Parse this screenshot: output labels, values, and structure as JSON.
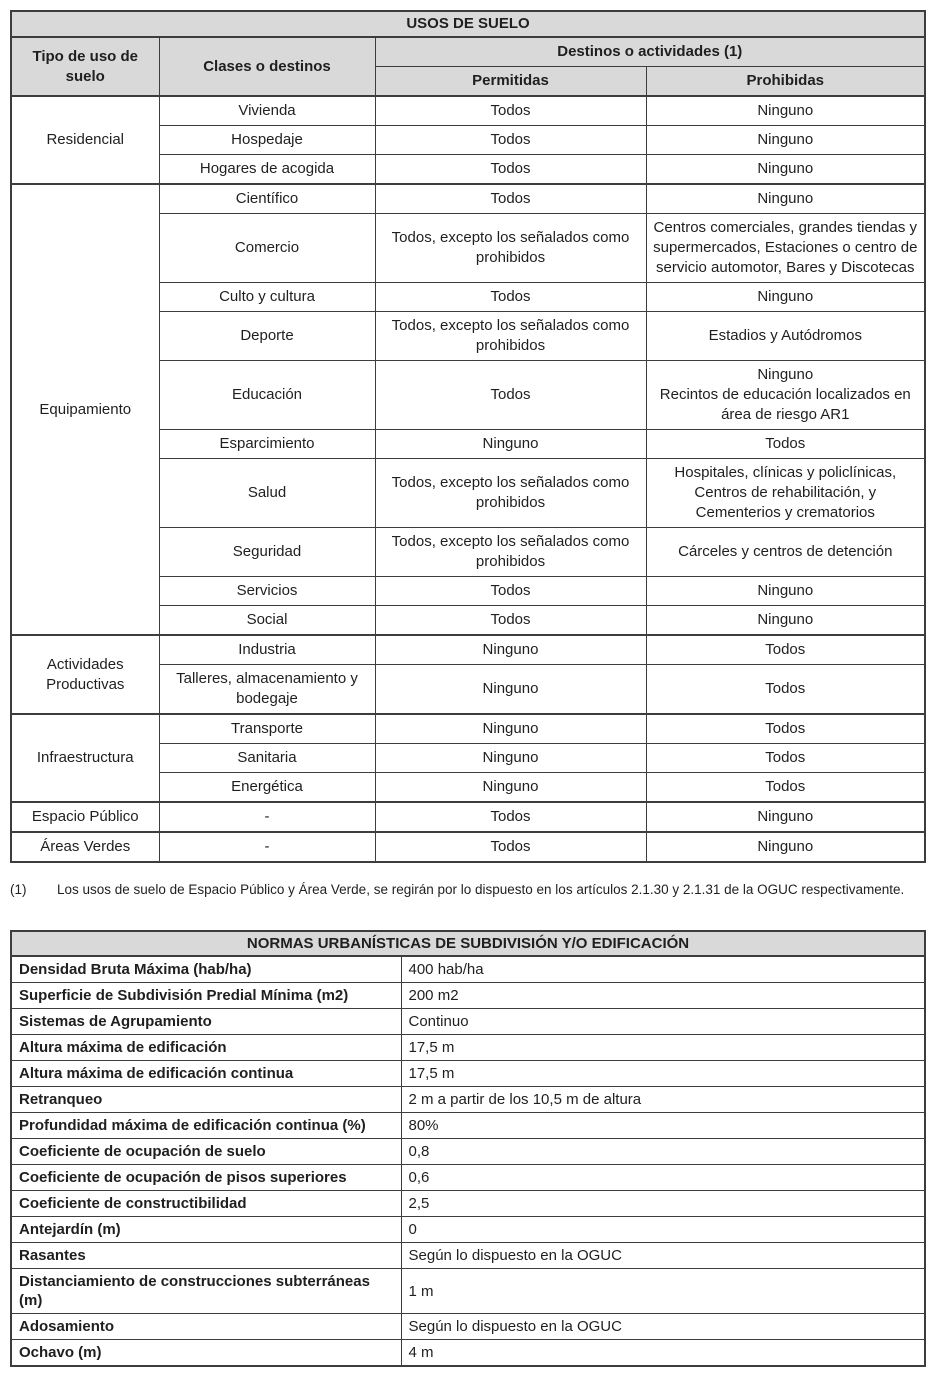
{
  "colors": {
    "header_bg": "#d9d9d9",
    "border": "#3d3d3d",
    "text": "#1f1f1f"
  },
  "usos": {
    "title": "USOS DE SUELO",
    "headers": {
      "tipo": "Tipo de uso de suelo",
      "clases": "Clases o destinos",
      "destinos": "Destinos o actividades (1)",
      "permitidas": "Permitidas",
      "prohibidas": "Prohibidas"
    },
    "groups": [
      {
        "tipo": "Residencial",
        "rows": [
          {
            "clase": "Vivienda",
            "permitidas": "Todos",
            "prohibidas": "Ninguno"
          },
          {
            "clase": "Hospedaje",
            "permitidas": "Todos",
            "prohibidas": "Ninguno"
          },
          {
            "clase": "Hogares de acogida",
            "permitidas": "Todos",
            "prohibidas": "Ninguno"
          }
        ]
      },
      {
        "tipo": "Equipamiento",
        "rows": [
          {
            "clase": "Científico",
            "permitidas": "Todos",
            "prohibidas": "Ninguno"
          },
          {
            "clase": "Comercio",
            "permitidas": "Todos, excepto los señalados como prohibidos",
            "prohibidas": "Centros comerciales, grandes tiendas y supermercados, Estaciones o centro de servicio automotor, Bares y Discotecas"
          },
          {
            "clase": "Culto y cultura",
            "permitidas": "Todos",
            "prohibidas": "Ninguno"
          },
          {
            "clase": "Deporte",
            "permitidas": "Todos, excepto los señalados como prohibidos",
            "prohibidas": "Estadios y Autódromos"
          },
          {
            "clase": "Educación",
            "permitidas": "Todos",
            "prohibidas": "Ninguno\nRecintos de educación localizados en área de riesgo AR1"
          },
          {
            "clase": "Esparcimiento",
            "permitidas": "Ninguno",
            "prohibidas": "Todos"
          },
          {
            "clase": "Salud",
            "permitidas": "Todos, excepto los señalados como prohibidos",
            "prohibidas": "Hospitales, clínicas y policlínicas, Centros de rehabilitación, y Cementerios y crematorios"
          },
          {
            "clase": "Seguridad",
            "permitidas": "Todos, excepto los señalados como prohibidos",
            "prohibidas": "Cárceles y centros de detención"
          },
          {
            "clase": "Servicios",
            "permitidas": "Todos",
            "prohibidas": "Ninguno"
          },
          {
            "clase": "Social",
            "permitidas": "Todos",
            "prohibidas": "Ninguno"
          }
        ]
      },
      {
        "tipo": "Actividades Productivas",
        "rows": [
          {
            "clase": "Industria",
            "permitidas": "Ninguno",
            "prohibidas": "Todos"
          },
          {
            "clase": "Talleres, almacenamiento y bodegaje",
            "permitidas": "Ninguno",
            "prohibidas": "Todos"
          }
        ]
      },
      {
        "tipo": "Infraestructura",
        "rows": [
          {
            "clase": "Transporte",
            "permitidas": "Ninguno",
            "prohibidas": "Todos"
          },
          {
            "clase": "Sanitaria",
            "permitidas": "Ninguno",
            "prohibidas": "Todos"
          },
          {
            "clase": "Energética",
            "permitidas": "Ninguno",
            "prohibidas": "Todos"
          }
        ]
      },
      {
        "tipo": "Espacio Público",
        "rows": [
          {
            "clase": "-",
            "permitidas": "Todos",
            "prohibidas": "Ninguno"
          }
        ]
      },
      {
        "tipo": "Áreas Verdes",
        "rows": [
          {
            "clase": "-",
            "permitidas": "Todos",
            "prohibidas": "Ninguno"
          }
        ]
      }
    ]
  },
  "footnote": {
    "marker": "(1)",
    "text": "Los usos de suelo de Espacio Público y Área Verde, se regirán por lo dispuesto en los artículos 2.1.30 y 2.1.31 de la OGUC respectivamente."
  },
  "normas": {
    "title": "NORMAS URBANÍSTICAS DE SUBDIVISIÓN Y/O EDIFICACIÓN",
    "rows": [
      {
        "label": "Densidad Bruta Máxima (hab/ha)",
        "value": "400 hab/ha"
      },
      {
        "label": "Superficie de Subdivisión Predial Mínima (m2)",
        "value": "200 m2"
      },
      {
        "label": "Sistemas de Agrupamiento",
        "value": "Continuo"
      },
      {
        "label": "Altura máxima de edificación",
        "value": "17,5 m"
      },
      {
        "label": "Altura máxima de edificación continua",
        "value": "17,5 m"
      },
      {
        "label": "Retranqueo",
        "value": "2 m a partir de los 10,5 m de altura"
      },
      {
        "label": "Profundidad máxima de edificación continua (%)",
        "value": "80%"
      },
      {
        "label": "Coeficiente de ocupación de suelo",
        "value": "0,8"
      },
      {
        "label": "Coeficiente de ocupación de pisos superiores",
        "value": "0,6"
      },
      {
        "label": "Coeficiente de constructibilidad",
        "value": "2,5"
      },
      {
        "label": "Antejardín (m)",
        "value": "0"
      },
      {
        "label": "Rasantes",
        "value": "Según lo dispuesto en la OGUC"
      },
      {
        "label": "Distanciamiento de construcciones subterráneas (m)",
        "value": "1 m"
      },
      {
        "label": "Adosamiento",
        "value": "Según lo dispuesto en la OGUC"
      },
      {
        "label": "Ochavo (m)",
        "value": "4 m"
      }
    ]
  }
}
